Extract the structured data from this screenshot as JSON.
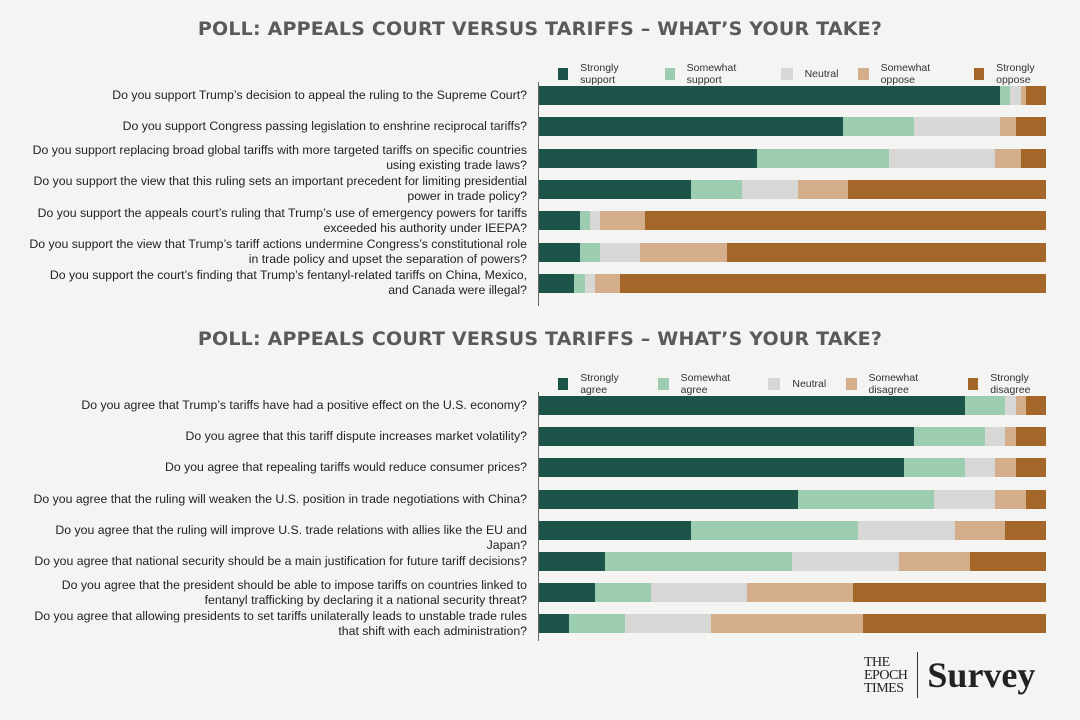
{
  "colors": [
    "#1d5449",
    "#9ccdb1",
    "#d7d7d5",
    "#d4ae8b",
    "#a5662a"
  ],
  "chart_data": [
    {
      "type": "bar",
      "orientation": "horizontal",
      "stacked": true,
      "unit": "percent",
      "title": "POLL: APPEALS COURT VERSUS TARIFFS – WHAT’S YOUR TAKE?",
      "legend_position": "top-right",
      "grid": false,
      "categories": [
        "Do you support Trump’s decision to appeal the ruling to the Supreme Court?",
        "Do you support Congress passing legislation to enshrine reciprocal tariffs?",
        "Do you support replacing broad global tariffs with more targeted tariffs on specific countries using existing trade laws?",
        "Do you support the view that this ruling sets an important precedent for limiting presidential power in trade policy?",
        "Do you support the appeals court’s ruling that Trump’s use of emergency powers for tariffs exceeded his authority under IEEPA?",
        "Do you support the view that Trump’s tariff actions undermine Congress’s constitutional role in trade policy and upset the separation of powers?",
        "Do you support the court’s finding that Trump’s fentanyl-related tariffs on China, Mexico, and Canada were illegal?"
      ],
      "series": [
        {
          "name": "Strongly support",
          "values": [
            91,
            60,
            43,
            30,
            8,
            8,
            7
          ]
        },
        {
          "name": "Somewhat support",
          "values": [
            2,
            14,
            26,
            10,
            2,
            4,
            2
          ]
        },
        {
          "name": "Neutral",
          "values": [
            2,
            17,
            21,
            11,
            2,
            8,
            2
          ]
        },
        {
          "name": "Somewhat oppose",
          "values": [
            1,
            3,
            5,
            10,
            9,
            17,
            5
          ]
        },
        {
          "name": "Strongly oppose",
          "values": [
            4,
            6,
            5,
            39,
            79,
            63,
            84
          ]
        }
      ]
    },
    {
      "type": "bar",
      "orientation": "horizontal",
      "stacked": true,
      "unit": "percent",
      "title": "POLL: APPEALS COURT VERSUS TARIFFS – WHAT’S YOUR TAKE?",
      "legend_position": "top-right",
      "grid": false,
      "categories": [
        "Do you agree that Trump’s tariffs have had a positive effect on the U.S. economy?",
        "Do you agree that this tariff dispute increases market volatility?",
        "Do you agree that repealing tariffs would reduce consumer prices?",
        "Do you agree that the ruling will weaken the U.S. position in trade negotiations with China?",
        "Do you agree that the ruling will improve U.S. trade relations with allies like the EU and Japan?",
        "Do you agree that national security should be a main justification for future tariff decisions?",
        "Do you agree that the president should be able to impose tariffs on countries linked to fentanyl trafficking by declaring it a national security threat?",
        "Do you agree that allowing presidents to set tariffs unilaterally leads to unstable trade rules that shift with each administration?"
      ],
      "series": [
        {
          "name": "Strongly agree",
          "values": [
            84,
            74,
            72,
            51,
            30,
            13,
            11,
            6
          ]
        },
        {
          "name": "Somewhat agree",
          "values": [
            8,
            14,
            12,
            27,
            33,
            37,
            11,
            11
          ]
        },
        {
          "name": "Neutral",
          "values": [
            2,
            4,
            6,
            12,
            19,
            21,
            19,
            17
          ]
        },
        {
          "name": "Somewhat disagree",
          "values": [
            2,
            2,
            4,
            6,
            10,
            14,
            21,
            30
          ]
        },
        {
          "name": "Strongly disagree",
          "values": [
            4,
            6,
            6,
            4,
            8,
            15,
            38,
            36
          ]
        }
      ]
    }
  ],
  "logo": {
    "publisher": "THE EPOCH TIMES",
    "product": "Survey"
  }
}
